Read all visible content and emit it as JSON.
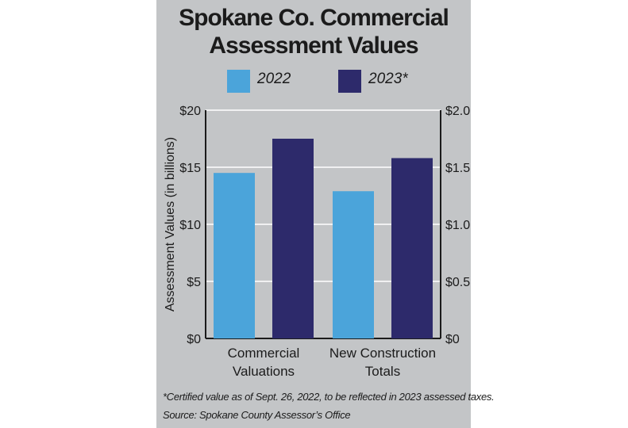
{
  "title_lines": [
    "Spokane Co. Commercial",
    "Assessment Values"
  ],
  "chart_data": {
    "type": "bar",
    "title": "Spokane Co. Commercial Assessment Values",
    "categories": [
      [
        "Commercial",
        "Valuations"
      ],
      [
        "New Construction",
        "Totals"
      ]
    ],
    "series": [
      {
        "name": "2022",
        "color": "#4ba4da",
        "values": [
          14.5,
          1.29
        ]
      },
      {
        "name": "2023*",
        "color": "#2d2a6b",
        "values": [
          17.5,
          1.58
        ]
      }
    ],
    "ylabel": "Assessment Values (in billions)",
    "left_axis": {
      "ylim": [
        0,
        20
      ],
      "ticks": [
        "$0",
        "$5",
        "$10",
        "$15",
        "$20"
      ],
      "applies_to": "Commercial Valuations"
    },
    "right_axis": {
      "ylim": [
        0,
        2.0
      ],
      "ticks": [
        "$0",
        "$0.5",
        "$1.0",
        "$1.5",
        "$2.0"
      ],
      "applies_to": "New Construction Totals"
    },
    "grid": true,
    "legend_placement": "top"
  },
  "footnote": "*Certified value as of Sept. 26, 2022, to be reflected in 2023 assessed taxes.",
  "source": "Source: Spokane County Assessor’s Office",
  "colors": {
    "panel_background": "#c3c5c7",
    "text": "#1b1b1b",
    "gridline": "#ffffff"
  }
}
